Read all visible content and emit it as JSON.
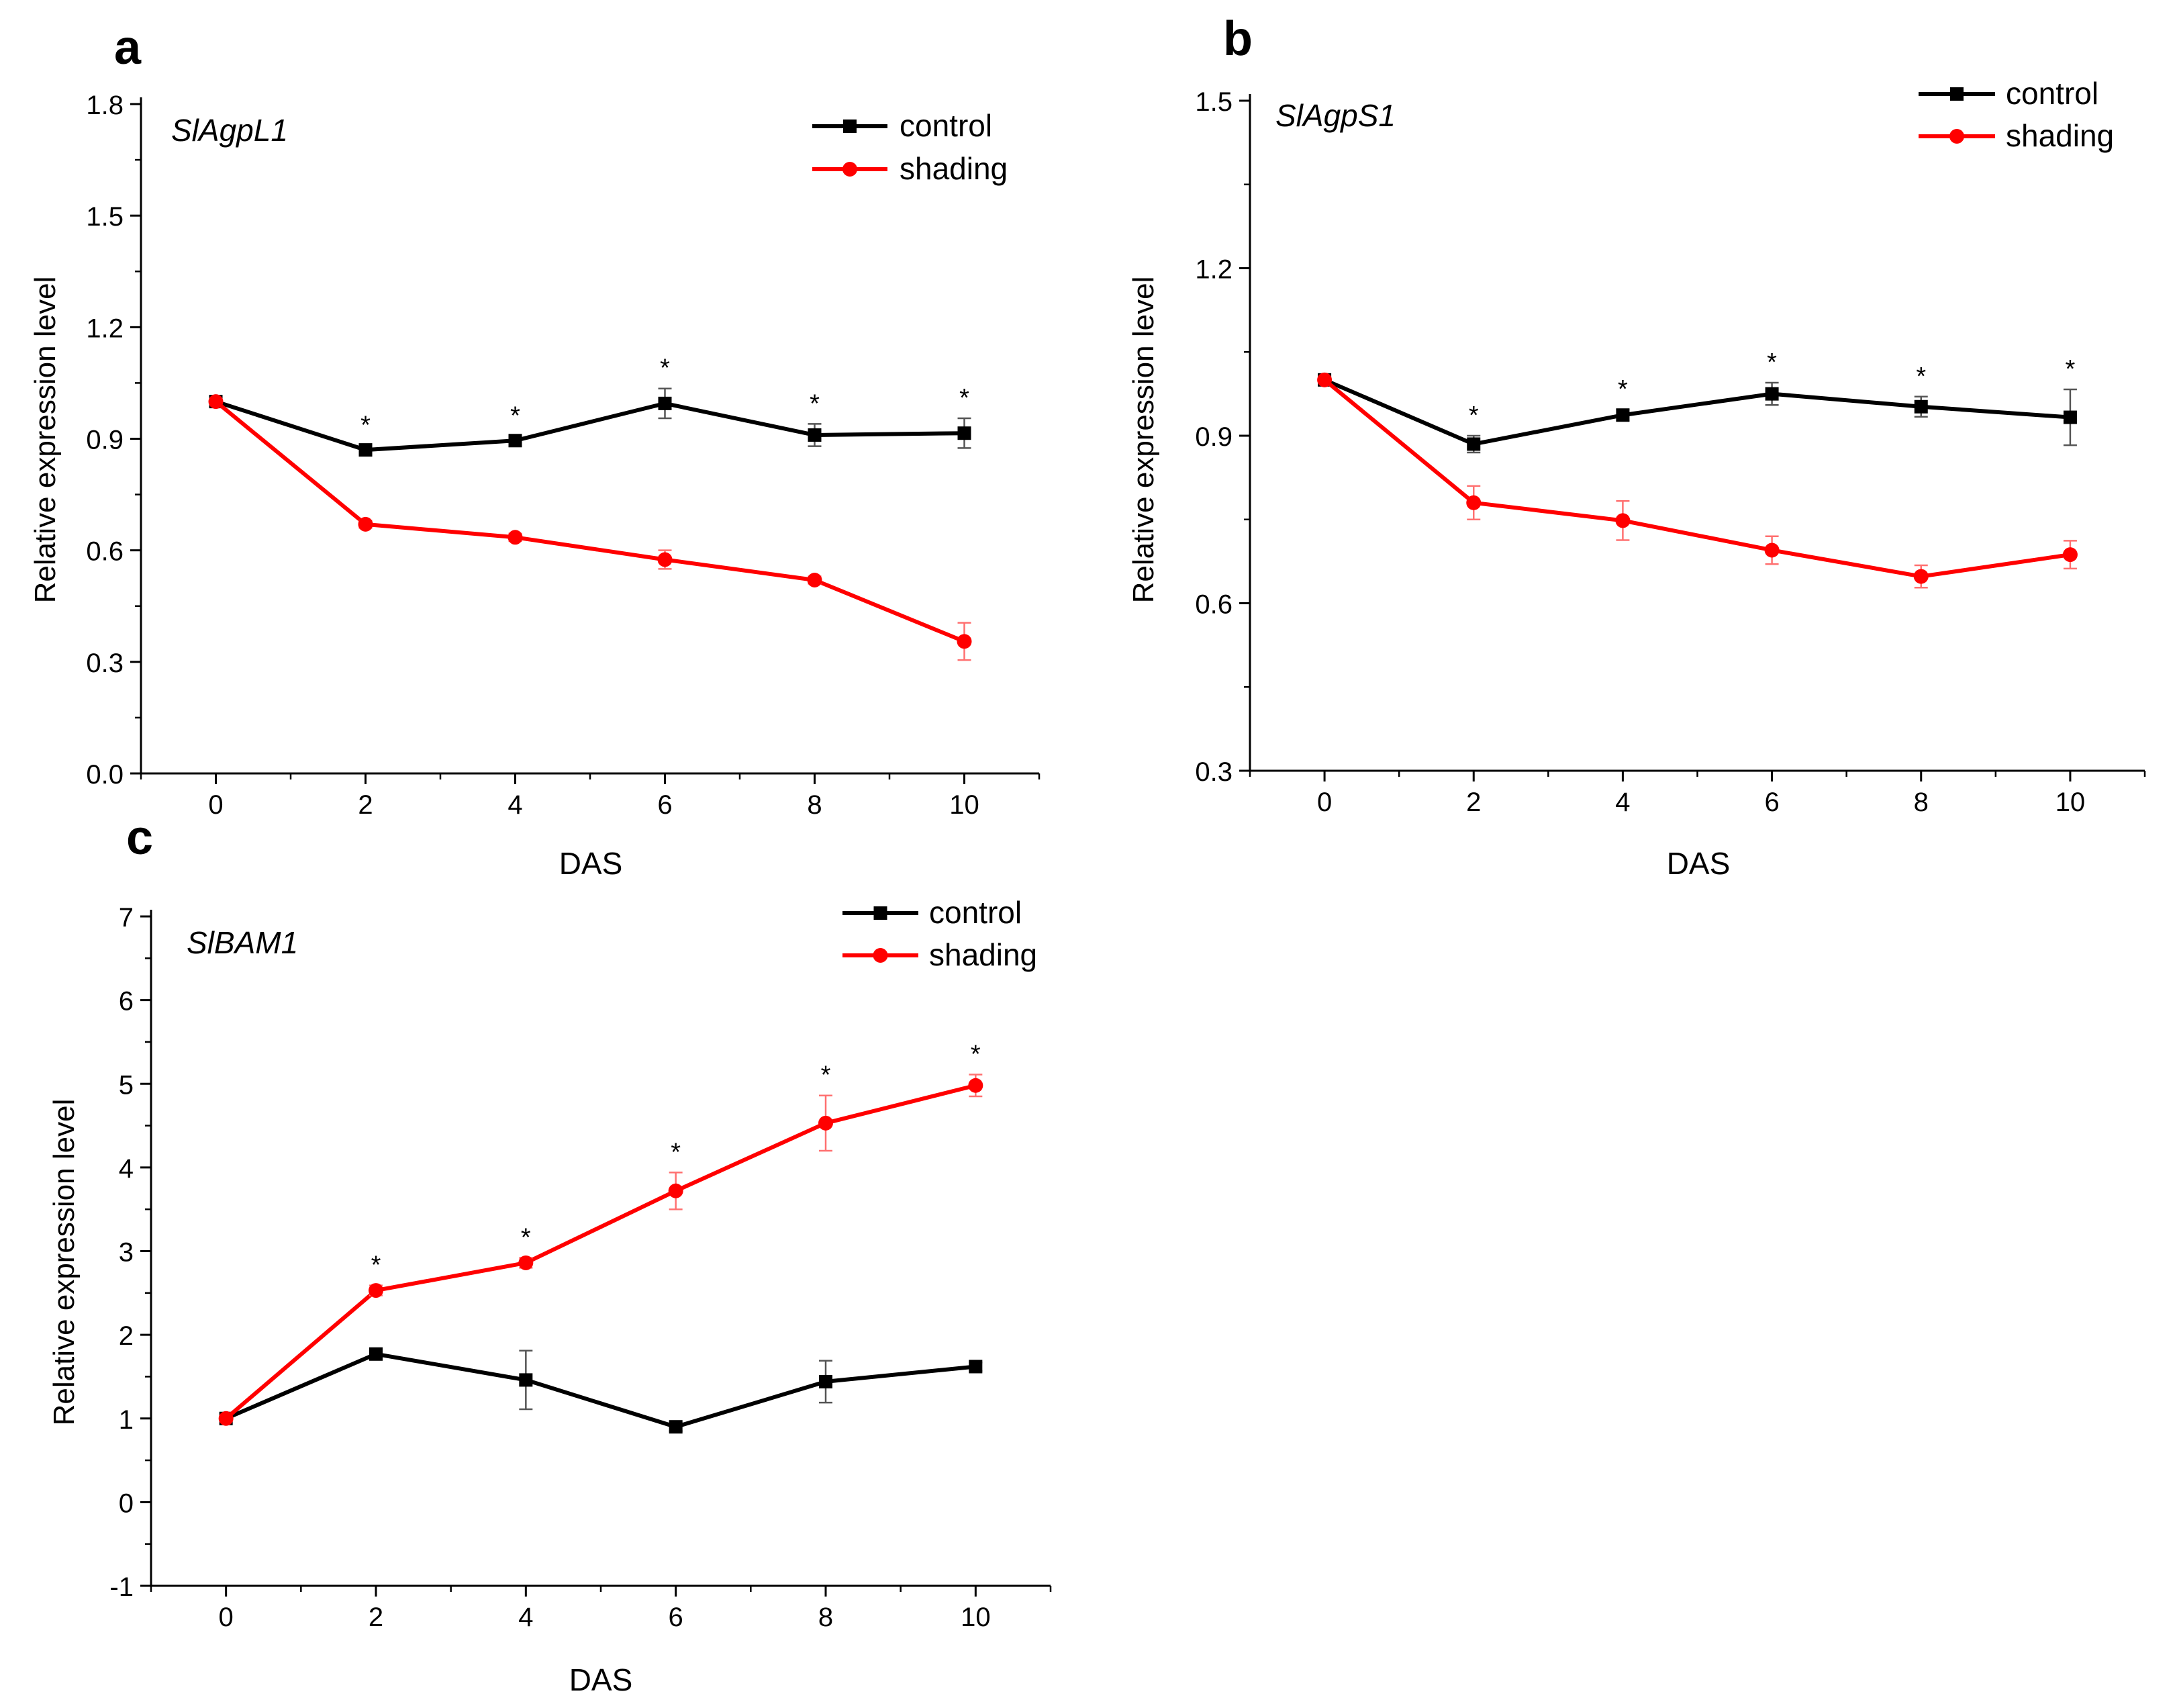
{
  "chart_data": [
    {
      "panel_letter": "a",
      "gene": "SlAgpL1",
      "type": "line",
      "xlabel": "DAS",
      "ylabel": "Relative expression level",
      "x": [
        0,
        2,
        4,
        6,
        8,
        10
      ],
      "xticks": [
        "0",
        "2",
        "4",
        "6",
        "8",
        "10"
      ],
      "xlim": [
        -1,
        11
      ],
      "ylim": [
        0.0,
        1.8
      ],
      "yticks": [
        "0.0",
        "0.3",
        "0.6",
        "0.9",
        "1.2",
        "1.5",
        "1.8"
      ],
      "yticks_val": [
        0.0,
        0.3,
        0.6,
        0.9,
        1.2,
        1.5,
        1.8
      ],
      "legend_position": "top-right",
      "series": [
        {
          "name": "control",
          "color": "#000000",
          "marker": "square",
          "values": [
            1.0,
            0.87,
            0.895,
            0.995,
            0.91,
            0.915
          ],
          "errors": [
            0.0,
            0.012,
            0.012,
            0.04,
            0.03,
            0.04
          ]
        },
        {
          "name": "shading",
          "color": "#ff0000",
          "marker": "circle",
          "values": [
            1.0,
            0.67,
            0.635,
            0.575,
            0.52,
            0.355
          ],
          "errors": [
            0.0,
            0.01,
            0.01,
            0.025,
            0.01,
            0.05
          ]
        }
      ],
      "significance": [
        "",
        "*",
        "*",
        "*",
        "*",
        "*"
      ]
    },
    {
      "panel_letter": "b",
      "gene": "SlAgpS1",
      "type": "line",
      "xlabel": "DAS",
      "ylabel": "Relative expression level",
      "x": [
        0,
        2,
        4,
        6,
        8,
        10
      ],
      "xticks": [
        "0",
        "2",
        "4",
        "6",
        "8",
        "10"
      ],
      "xlim": [
        -1,
        11
      ],
      "ylim": [
        0.3,
        1.5
      ],
      "yticks": [
        "0.3",
        "0.6",
        "0.9",
        "1.2",
        "1.5"
      ],
      "yticks_val": [
        0.3,
        0.6,
        0.9,
        1.2,
        1.5
      ],
      "legend_position": "top-right",
      "series": [
        {
          "name": "control",
          "color": "#000000",
          "marker": "square",
          "values": [
            1.0,
            0.885,
            0.937,
            0.975,
            0.952,
            0.933
          ],
          "errors": [
            0.0,
            0.015,
            0.01,
            0.02,
            0.018,
            0.05
          ]
        },
        {
          "name": "shading",
          "color": "#ff0000",
          "marker": "circle",
          "values": [
            1.0,
            0.78,
            0.748,
            0.695,
            0.648,
            0.687
          ],
          "errors": [
            0.0,
            0.03,
            0.035,
            0.025,
            0.02,
            0.025
          ]
        }
      ],
      "significance": [
        "",
        "*",
        "*",
        "*",
        "*",
        "*"
      ]
    },
    {
      "panel_letter": "c",
      "gene": "SlBAM1",
      "type": "line",
      "xlabel": "DAS",
      "ylabel": "Relative expression level",
      "x": [
        0,
        2,
        4,
        6,
        8,
        10
      ],
      "xticks": [
        "0",
        "2",
        "4",
        "6",
        "8",
        "10"
      ],
      "xlim": [
        -1,
        11
      ],
      "ylim": [
        -1,
        7
      ],
      "yticks": [
        "-1",
        "0",
        "1",
        "2",
        "3",
        "4",
        "5",
        "6",
        "7"
      ],
      "yticks_val": [
        -1,
        0,
        1,
        2,
        3,
        4,
        5,
        6,
        7
      ],
      "legend_position": "top-right",
      "series": [
        {
          "name": "control",
          "color": "#000000",
          "marker": "square",
          "values": [
            1.0,
            1.77,
            1.46,
            0.9,
            1.44,
            1.62
          ],
          "errors": [
            0.0,
            0.04,
            0.35,
            0.05,
            0.25,
            0.05
          ]
        },
        {
          "name": "shading",
          "color": "#ff0000",
          "marker": "circle",
          "values": [
            1.0,
            2.53,
            2.86,
            3.72,
            4.53,
            4.98
          ],
          "errors": [
            0.0,
            0.06,
            0.06,
            0.22,
            0.33,
            0.13
          ]
        }
      ],
      "significance": [
        "",
        "*",
        "*",
        "*",
        "*",
        "*"
      ]
    }
  ]
}
